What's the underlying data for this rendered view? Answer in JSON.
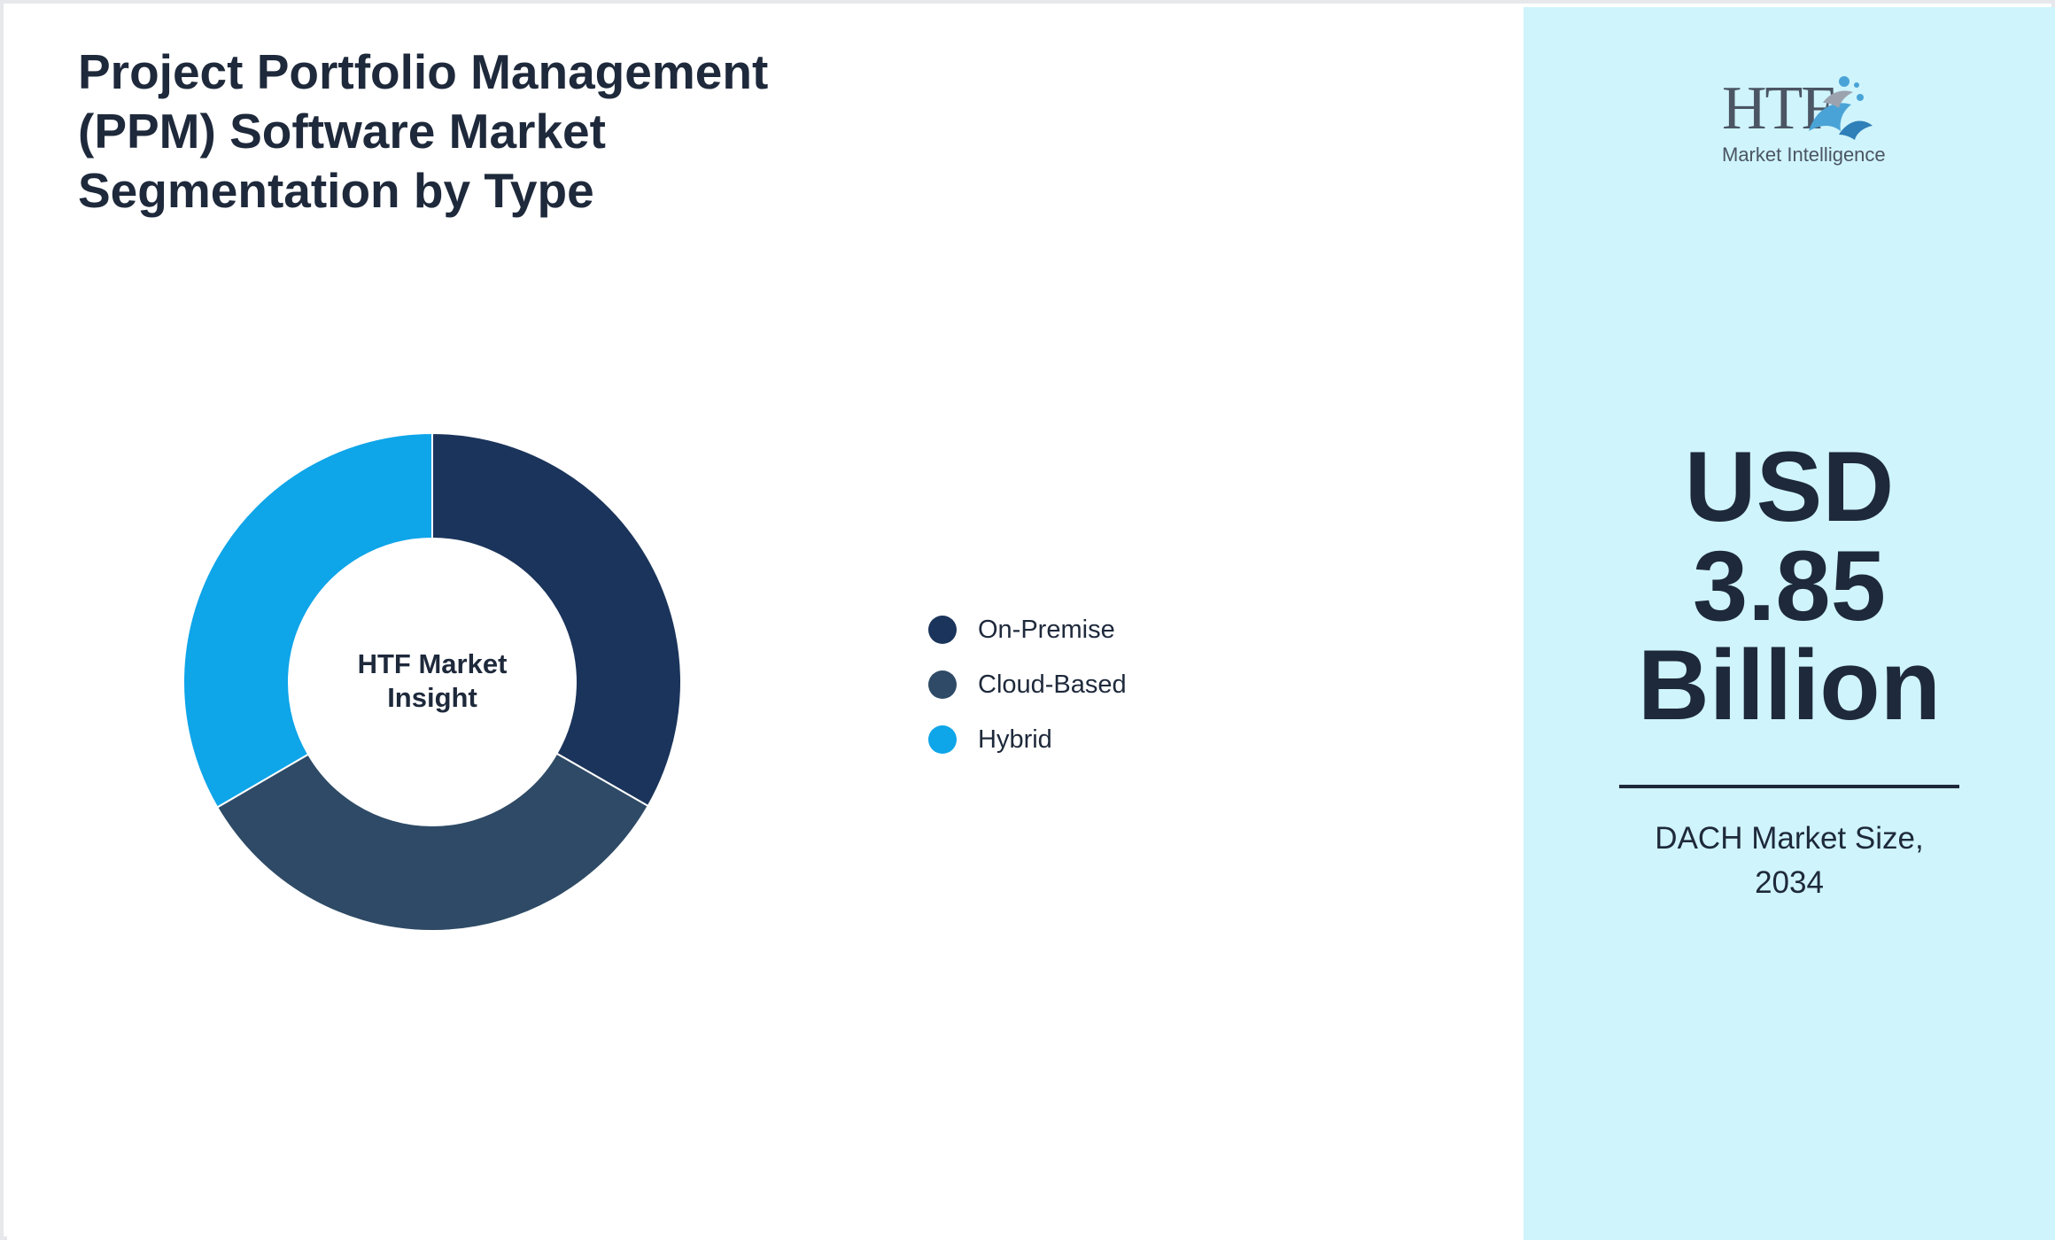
{
  "header": {
    "title": "Project Portfolio Management (PPM) Software Market Segmentation by Type"
  },
  "chart_data": {
    "type": "pie",
    "style": "donut",
    "center_label": [
      "HTF Market",
      "Insight"
    ],
    "categories": [
      "On-Premise",
      "Cloud-Based",
      "Hybrid"
    ],
    "values": [
      33.3,
      33.3,
      33.4
    ],
    "colors": [
      "#1b345b",
      "#2e4a66",
      "#0ea5e9"
    ],
    "legend_position": "right"
  },
  "brand": {
    "logo_text": "HTF",
    "logo_subtext": "Market Intelligence"
  },
  "market": {
    "value_lines": [
      "USD",
      "3.85",
      "Billion"
    ],
    "caption_lines": [
      "DACH Market Size,",
      "2034"
    ]
  },
  "colors": {
    "panel_background": "#cff4fc",
    "text_primary": "#1e293b"
  }
}
